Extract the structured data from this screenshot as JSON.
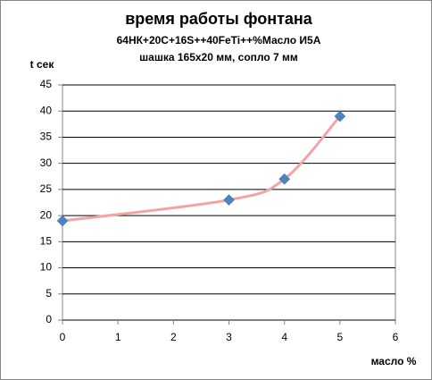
{
  "chart_data": {
    "type": "scatter",
    "title": "время работы фонтана",
    "subtitle": [
      "64НК+20С+16S++40FeTi++%Масло  И5А",
      "шашка 165х20  мм, сопло 7 мм"
    ],
    "y_label": "t сек",
    "x_label": "масло %",
    "series": [
      {
        "name": "t",
        "color": "#4f81bd",
        "line_color": "#f4a3a3",
        "x": [
          0,
          3,
          4,
          5
        ],
        "values": [
          19,
          23,
          27,
          39
        ]
      }
    ],
    "smooth": true,
    "xlim": [
      0,
      6
    ],
    "xticks": [
      0,
      1,
      2,
      3,
      4,
      5,
      6
    ],
    "ylim": [
      0,
      45
    ],
    "yticks": [
      0,
      5,
      10,
      15,
      20,
      25,
      30,
      35,
      40,
      45
    ],
    "grid": true
  }
}
